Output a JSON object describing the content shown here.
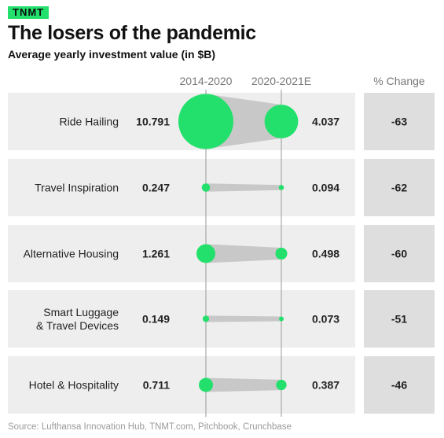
{
  "brand": "TNMT",
  "title": "The losers of the pandemic",
  "subtitle": "Average yearly investment value (in $B)",
  "source": "Source: Lufthansa Innovation Hub, TNMT.com, Pitchbook, Crunchbase",
  "colors": {
    "accent": "#22e06b",
    "row_bg": "#eeeeee",
    "change_bg": "#dedede",
    "connector": "#c8c8c8",
    "axis_line": "#999999"
  },
  "chart_data": {
    "type": "dumbbell",
    "title": "The losers of the pandemic",
    "subtitle": "Average yearly investment value (in $B)",
    "columns": [
      "2014-2020",
      "2020-2021E",
      "% Change"
    ],
    "categories": [
      "Ride Hailing",
      "Travel Inspiration",
      "Alternative Housing",
      "Smart Luggage\n& Travel Devices",
      "Hotel & Hospitality"
    ],
    "series": [
      {
        "name": "2014-2020",
        "values": [
          10.791,
          0.247,
          1.261,
          0.149,
          0.711
        ]
      },
      {
        "name": "2020-2021E",
        "values": [
          4.037,
          0.094,
          0.498,
          0.073,
          0.387
        ]
      }
    ],
    "value_labels": {
      "2014-2020": [
        "10.791",
        "0.247",
        "1.261",
        "0.149",
        "0.711"
      ],
      "2020-2021E": [
        "4.037",
        "0.094",
        "0.498",
        "0.073",
        "0.387"
      ]
    },
    "pct_change": [
      -63,
      -62,
      -60,
      -51,
      -46
    ],
    "pct_change_labels": [
      "-63",
      "-62",
      "-60",
      "-51",
      "-46"
    ],
    "encoding": "bubble area proportional to value"
  }
}
